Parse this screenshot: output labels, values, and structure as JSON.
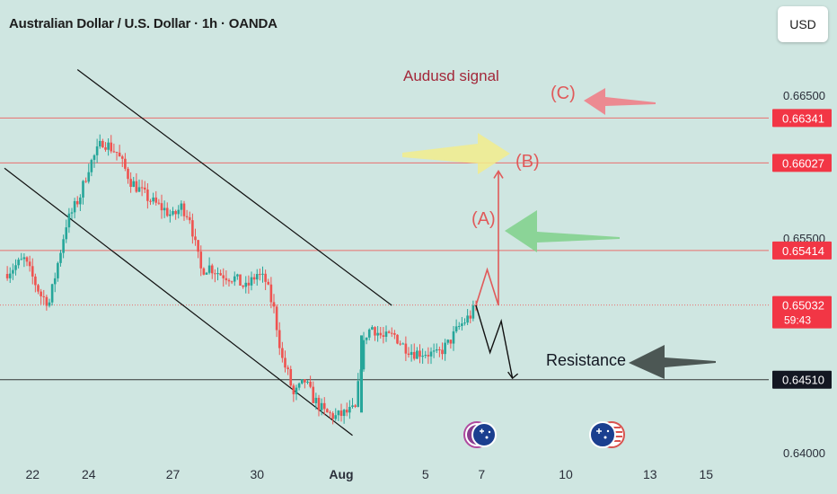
{
  "header": {
    "title": "Australian Dollar / U.S. Dollar · 1h · OANDA",
    "currency_button": "USD"
  },
  "colors": {
    "background": "#cfe6e1",
    "up_candle": "#26a69a",
    "down_candle": "#ef5350",
    "price_line": "#ef5350",
    "support_line": "#222222",
    "label_red": "#f23645",
    "label_black": "#131722",
    "annotation_red": "#e05a5a",
    "title_annotation": "#a3283a",
    "arrow_yellow": "#f2ec8c",
    "arrow_green": "#7fd08a",
    "arrow_pink": "#ee7f88",
    "arrow_dark": "#3d4745"
  },
  "chart_data": {
    "type": "candlestick",
    "title": "Australian Dollar / U.S. Dollar · 1h · OANDA",
    "ylim": [
      0.6393,
      0.6679
    ],
    "y_ticks": [
      "0.66500",
      "0.65500",
      "0.64000"
    ],
    "x_ticks": [
      {
        "label": "22",
        "x": 1.0,
        "bold": false
      },
      {
        "label": "24",
        "x": 3.0,
        "bold": false
      },
      {
        "label": "27",
        "x": 6.0,
        "bold": false
      },
      {
        "label": "30",
        "x": 9.0,
        "bold": false
      },
      {
        "label": "Aug",
        "x": 12.0,
        "bold": true
      },
      {
        "label": "5",
        "x": 15.0,
        "bold": false
      },
      {
        "label": "7",
        "x": 17.0,
        "bold": false
      },
      {
        "label": "10",
        "x": 20.0,
        "bold": false
      },
      {
        "label": "13",
        "x": 23.0,
        "bold": false
      },
      {
        "label": "15",
        "x": 25.0,
        "bold": false
      }
    ],
    "price_path": [
      [
        0.0,
        0.6525
      ],
      [
        0.7,
        0.6535
      ],
      [
        1.3,
        0.651
      ],
      [
        1.6,
        0.6505
      ],
      [
        2.2,
        0.656
      ],
      [
        2.7,
        0.658
      ],
      [
        3.0,
        0.66
      ],
      [
        3.5,
        0.6618
      ],
      [
        4.0,
        0.661
      ],
      [
        4.5,
        0.659
      ],
      [
        5.0,
        0.658
      ],
      [
        5.3,
        0.6575
      ],
      [
        5.7,
        0.657
      ],
      [
        6.0,
        0.6565
      ],
      [
        6.3,
        0.6572
      ],
      [
        6.6,
        0.6565
      ],
      [
        6.8,
        0.6545
      ],
      [
        7.0,
        0.6528
      ],
      [
        7.3,
        0.653
      ],
      [
        7.7,
        0.6525
      ],
      [
        8.2,
        0.6522
      ],
      [
        8.6,
        0.6515
      ],
      [
        9.0,
        0.6525
      ],
      [
        9.3,
        0.652
      ],
      [
        9.6,
        0.65
      ],
      [
        9.9,
        0.6465
      ],
      [
        10.1,
        0.6455
      ],
      [
        10.3,
        0.644
      ],
      [
        10.7,
        0.645
      ],
      [
        11.0,
        0.6438
      ],
      [
        11.4,
        0.6428
      ],
      [
        11.8,
        0.6425
      ],
      [
        12.2,
        0.6428
      ],
      [
        12.5,
        0.643
      ],
      [
        12.7,
        0.6462
      ],
      [
        12.85,
        0.6482
      ],
      [
        13.1,
        0.6488
      ],
      [
        13.5,
        0.648
      ],
      [
        13.9,
        0.6482
      ],
      [
        14.2,
        0.6475
      ],
      [
        14.6,
        0.647
      ],
      [
        15.0,
        0.647
      ],
      [
        15.4,
        0.6468
      ],
      [
        15.8,
        0.6476
      ],
      [
        16.2,
        0.6488
      ],
      [
        16.6,
        0.6496
      ],
      [
        16.8,
        0.6502
      ]
    ],
    "horizontal_lines": [
      {
        "value": 0.66341,
        "label": "0.66341",
        "style": "solid"
      },
      {
        "value": 0.66027,
        "label": "0.66027",
        "style": "solid"
      },
      {
        "value": 0.65414,
        "label": "0.65414",
        "style": "solid"
      },
      {
        "value": 0.65032,
        "label": "0.65032",
        "style": "dotted"
      },
      {
        "value": 0.6451,
        "label": "0.64510",
        "style": "solid"
      }
    ],
    "current_price": {
      "value": 0.65032,
      "label": "0.65032",
      "countdown": "59:43"
    },
    "support_price": {
      "value": 0.6451,
      "label": "0.64510"
    },
    "channel": {
      "upper": [
        [
          2.6,
          0.6668
        ],
        [
          13.8,
          0.6503
        ]
      ],
      "lower": [
        [
          0.0,
          0.6599
        ],
        [
          12.4,
          0.6412
        ]
      ]
    },
    "projection": {
      "up_path": [
        [
          16.8,
          0.6503
        ],
        [
          17.2,
          0.6528
        ],
        [
          17.6,
          0.6503
        ],
        [
          17.6,
          0.6597
        ]
      ],
      "down_path": [
        [
          16.8,
          0.6503
        ],
        [
          17.3,
          0.647
        ],
        [
          17.7,
          0.6492
        ],
        [
          18.1,
          0.6452
        ]
      ]
    },
    "annotations": {
      "signal": "Audusd signal",
      "labels": [
        {
          "text": "(A)",
          "x": 17.0,
          "y": 0.6558
        },
        {
          "text": "(B)",
          "x": 18.4,
          "y": 0.6601
        },
        {
          "text": "(C)",
          "x": 19.0,
          "y": 0.6651
        }
      ],
      "resistance": "Resistance"
    }
  }
}
